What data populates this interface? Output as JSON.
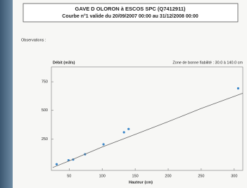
{
  "chart_data": {
    "type": "scatter",
    "title": "GAVE D OLORON à ESCOS SPC (Q7412911)",
    "subtitle": "Courbe n°1 valide du 20/09/2007 00:00 au 31/12/2008 00:00",
    "section_label": "Observations :",
    "y_label": "Débit (m3/s)",
    "x_label": "Hauteur (cm)",
    "annotation": "Zone de bonne fiabilité : 30.0 à 140.0 cm",
    "xlim": [
      23,
      313
    ],
    "ylim": [
      -25,
      880
    ],
    "xticks": [
      50,
      100,
      150,
      200,
      250,
      300
    ],
    "yticks": [
      250,
      500,
      750
    ],
    "series": [
      {
        "color": "#3a86c8",
        "x": [
          31,
          49,
          56,
          74,
          102,
          133,
          140,
          306
        ],
        "values": [
          29,
          64,
          70,
          116,
          203,
          308,
          337,
          692
        ]
      },
      {
        "type": "line",
        "color": "#666666",
        "x": [
          25,
          50,
          100,
          150,
          200,
          250,
          300,
          313
        ],
        "values": [
          0,
          58,
          180,
          290,
          401,
          517,
          622,
          650
        ]
      }
    ]
  }
}
